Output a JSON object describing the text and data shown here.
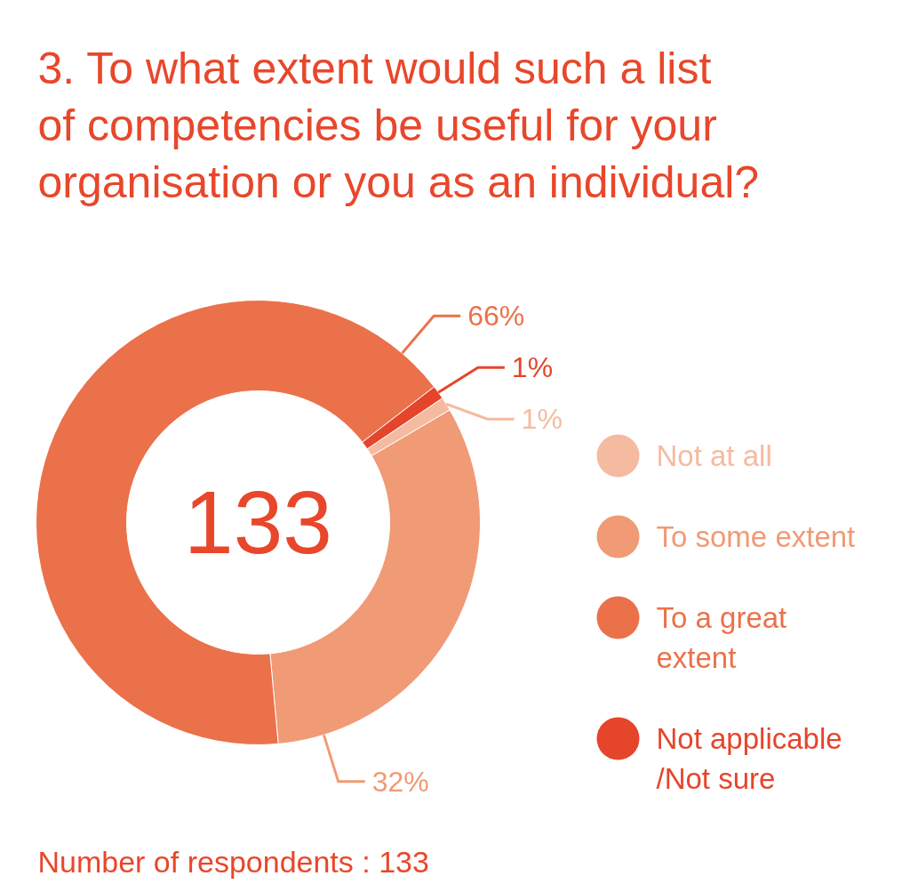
{
  "chart_data": {
    "type": "donut",
    "title": "3. To what extent would such a list of competencies be useful for your organisation or you as an individual?",
    "categories": [
      "Not at all",
      "To some extent",
      "To a great extent",
      "Not applicable /Not sure"
    ],
    "values": [
      1,
      32,
      66,
      1
    ],
    "colors": [
      "#f5bba0",
      "#f09a76",
      "#eb714b",
      "#e5452b"
    ],
    "value_labels": [
      "1%",
      "32%",
      "66%",
      "1%"
    ],
    "legend": "right",
    "annotations": [
      "133",
      "Number of respondents : 133"
    ]
  }
}
